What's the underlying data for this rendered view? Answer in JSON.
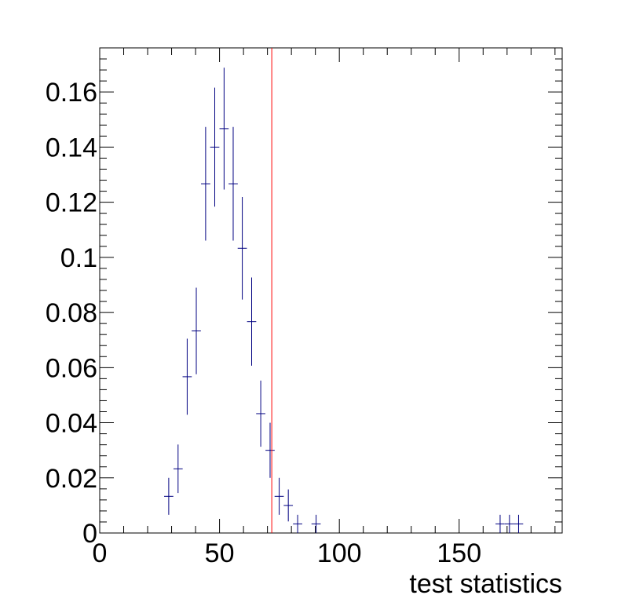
{
  "chart_data": {
    "type": "scatter",
    "style": "histogram-errorbars",
    "title": "",
    "xlabel": "test statistics",
    "ylabel": "",
    "xlim": [
      0,
      193
    ],
    "ylim": [
      0,
      0.176
    ],
    "x_ticks": [
      0,
      50,
      100,
      150
    ],
    "x_tick_labels": [
      "0",
      "50",
      "100",
      "150"
    ],
    "y_ticks": [
      0,
      0.02,
      0.04,
      0.06,
      0.08,
      0.1,
      0.12,
      0.14,
      0.16
    ],
    "y_tick_labels": [
      "0",
      "0.02",
      "0.04",
      "0.06",
      "0.08",
      "0.1",
      "0.12",
      "0.14",
      "0.16"
    ],
    "x_minor_step": 10,
    "y_minor_step": 0.004,
    "grid": false,
    "series": [
      {
        "color": "#000080",
        "bin_width": 3.84,
        "points": [
          {
            "x": 28.8,
            "y": 0.0133,
            "err": 0.0067
          },
          {
            "x": 32.7,
            "y": 0.0233,
            "err": 0.0088
          },
          {
            "x": 36.5,
            "y": 0.0567,
            "err": 0.0138
          },
          {
            "x": 40.3,
            "y": 0.0733,
            "err": 0.0157
          },
          {
            "x": 44.2,
            "y": 0.1267,
            "err": 0.0206
          },
          {
            "x": 48.0,
            "y": 0.14,
            "err": 0.0216
          },
          {
            "x": 51.9,
            "y": 0.1467,
            "err": 0.0221
          },
          {
            "x": 55.7,
            "y": 0.1267,
            "err": 0.0206
          },
          {
            "x": 59.5,
            "y": 0.1033,
            "err": 0.0186
          },
          {
            "x": 63.4,
            "y": 0.0767,
            "err": 0.016
          },
          {
            "x": 67.2,
            "y": 0.0433,
            "err": 0.012
          },
          {
            "x": 71.1,
            "y": 0.03,
            "err": 0.01
          },
          {
            "x": 74.9,
            "y": 0.0133,
            "err": 0.0067
          },
          {
            "x": 78.7,
            "y": 0.01,
            "err": 0.0058
          },
          {
            "x": 82.6,
            "y": 0.0033,
            "err": 0.0033
          },
          {
            "x": 90.3,
            "y": 0.0033,
            "err": 0.0033
          },
          {
            "x": 167.1,
            "y": 0.0033,
            "err": 0.0033
          },
          {
            "x": 171.0,
            "y": 0.0033,
            "err": 0.0033
          },
          {
            "x": 174.8,
            "y": 0.0033,
            "err": 0.0033
          }
        ]
      }
    ],
    "annotations": [
      {
        "type": "vertical-line",
        "x": 71.8,
        "color": "#ff0000"
      }
    ]
  }
}
